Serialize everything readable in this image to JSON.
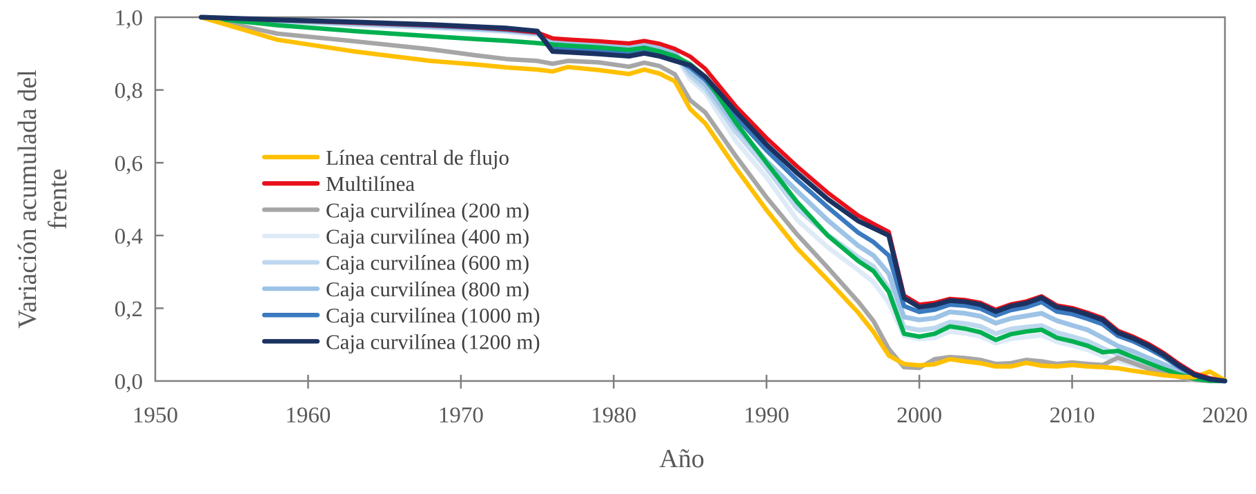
{
  "figure": {
    "background": "#ffffff",
    "frame_color": "#7f7f7f",
    "tick_text_color": "#595959",
    "legend_text_color": "#3f3f3f"
  },
  "chart_data": {
    "type": "line",
    "title": "",
    "xlabel": "Año",
    "ylabel": "Variación acumulada del frente",
    "ylabel_lines": [
      "Variación acumulada del",
      "frente"
    ],
    "xlim": [
      1950,
      2020
    ],
    "ylim": [
      0.0,
      1.0
    ],
    "grid": false,
    "legend_position": "inside-left",
    "x_ticks": [
      1950,
      1960,
      1970,
      1980,
      1990,
      2000,
      2010,
      2020
    ],
    "x_tick_labels": [
      "1950",
      "1960",
      "1970",
      "1980",
      "1990",
      "2000",
      "2010",
      "2020"
    ],
    "y_ticks": [
      0.0,
      0.2,
      0.4,
      0.6,
      0.8,
      1.0
    ],
    "y_tick_labels": [
      "0,0",
      "0,2",
      "0,4",
      "0,6",
      "0,8",
      "1,0"
    ],
    "x": [
      1953,
      1958,
      1963,
      1968,
      1971,
      1973,
      1975,
      1976,
      1977,
      1979,
      1981,
      1982,
      1983,
      1984,
      1985,
      1986,
      1988,
      1990,
      1992,
      1994,
      1996,
      1997,
      1998,
      1999,
      2000,
      2001,
      2002,
      2003,
      2004,
      2005,
      2006,
      2007,
      2008,
      2009,
      2010,
      2011,
      2012,
      2013,
      2014,
      2015,
      2016,
      2017,
      2018,
      2019,
      2020
    ],
    "series": [
      {
        "id": "caja-400",
        "name": "Caja curvilínea (400 m)",
        "color": "#DEEBF7",
        "stroke_width": 7,
        "in_legend": true,
        "legend_index": 3,
        "values": [
          1.0,
          0.989,
          0.979,
          0.971,
          0.965,
          0.96,
          0.952,
          0.928,
          0.926,
          0.921,
          0.915,
          0.922,
          0.913,
          0.895,
          0.83,
          0.792,
          0.66,
          0.56,
          0.443,
          0.368,
          0.305,
          0.272,
          0.215,
          0.124,
          0.116,
          0.119,
          0.136,
          0.131,
          0.123,
          0.104,
          0.116,
          0.121,
          0.126,
          0.108,
          0.098,
          0.086,
          0.069,
          0.056,
          0.044,
          0.032,
          0.021,
          0.011,
          0.003,
          0.0,
          0.0
        ]
      },
      {
        "id": "caja-600",
        "name": "Caja curvilínea (600 m)",
        "color": "#BDD7EE",
        "stroke_width": 7,
        "in_legend": true,
        "legend_index": 4,
        "values": [
          1.0,
          0.99,
          0.981,
          0.973,
          0.967,
          0.962,
          0.954,
          0.931,
          0.929,
          0.924,
          0.918,
          0.925,
          0.916,
          0.899,
          0.84,
          0.803,
          0.685,
          0.585,
          0.475,
          0.402,
          0.34,
          0.315,
          0.255,
          0.148,
          0.14,
          0.145,
          0.162,
          0.158,
          0.15,
          0.13,
          0.143,
          0.148,
          0.152,
          0.133,
          0.122,
          0.11,
          0.09,
          0.073,
          0.06,
          0.045,
          0.032,
          0.018,
          0.006,
          0.001,
          0.0
        ]
      },
      {
        "id": "caja-800",
        "name": "Caja curvilínea (800 m)",
        "color": "#9DC3E6",
        "stroke_width": 7,
        "in_legend": true,
        "legend_index": 5,
        "values": [
          1.0,
          0.991,
          0.983,
          0.975,
          0.969,
          0.964,
          0.956,
          0.934,
          0.932,
          0.927,
          0.921,
          0.928,
          0.919,
          0.903,
          0.85,
          0.815,
          0.7,
          0.605,
          0.522,
          0.442,
          0.372,
          0.345,
          0.295,
          0.176,
          0.168,
          0.173,
          0.19,
          0.186,
          0.178,
          0.159,
          0.172,
          0.179,
          0.186,
          0.166,
          0.153,
          0.141,
          0.119,
          0.096,
          0.081,
          0.063,
          0.046,
          0.027,
          0.01,
          0.002,
          0.0
        ]
      },
      {
        "id": "caja-1000",
        "name": "Caja curvilínea (1000 m)",
        "color": "#3A7AC0",
        "stroke_width": 6.5,
        "in_legend": true,
        "legend_index": 6,
        "values": [
          1.0,
          0.992,
          0.985,
          0.977,
          0.971,
          0.966,
          0.958,
          0.913,
          0.911,
          0.906,
          0.9,
          0.907,
          0.899,
          0.885,
          0.862,
          0.828,
          0.726,
          0.634,
          0.552,
          0.478,
          0.408,
          0.382,
          0.345,
          0.206,
          0.19,
          0.196,
          0.21,
          0.207,
          0.199,
          0.18,
          0.195,
          0.203,
          0.217,
          0.191,
          0.184,
          0.171,
          0.156,
          0.124,
          0.109,
          0.089,
          0.066,
          0.038,
          0.015,
          0.004,
          0.0
        ]
      },
      {
        "id": "caja-200",
        "name": "Caja curvilínea (200 m)",
        "color": "#A6A6A6",
        "stroke_width": 6.5,
        "in_legend": true,
        "legend_index": 2,
        "values": [
          1.0,
          0.955,
          0.934,
          0.912,
          0.895,
          0.885,
          0.88,
          0.872,
          0.88,
          0.876,
          0.864,
          0.875,
          0.866,
          0.843,
          0.772,
          0.738,
          0.618,
          0.505,
          0.403,
          0.312,
          0.218,
          0.165,
          0.088,
          0.038,
          0.036,
          0.06,
          0.066,
          0.063,
          0.058,
          0.047,
          0.049,
          0.058,
          0.054,
          0.047,
          0.051,
          0.047,
          0.044,
          0.064,
          0.049,
          0.034,
          0.021,
          0.011,
          0.003,
          0.0,
          0.0
        ]
      },
      {
        "id": "serie-verde",
        "name": "",
        "color": "#00B050",
        "stroke_width": 6.5,
        "in_legend": false,
        "legend_index": -1,
        "values": [
          1.0,
          0.978,
          0.962,
          0.948,
          0.94,
          0.935,
          0.929,
          0.925,
          0.922,
          0.917,
          0.91,
          0.916,
          0.906,
          0.893,
          0.871,
          0.836,
          0.71,
          0.6,
          0.492,
          0.4,
          0.33,
          0.302,
          0.245,
          0.13,
          0.122,
          0.13,
          0.15,
          0.144,
          0.134,
          0.113,
          0.129,
          0.136,
          0.141,
          0.119,
          0.109,
          0.097,
          0.079,
          0.083,
          0.066,
          0.049,
          0.033,
          0.018,
          0.006,
          0.001,
          0.0
        ]
      },
      {
        "id": "linea-central-de-flujo",
        "name": "Línea central de flujo",
        "color": "#FFC000",
        "stroke_width": 6.5,
        "in_legend": true,
        "legend_index": 0,
        "values": [
          1.0,
          0.938,
          0.906,
          0.88,
          0.87,
          0.862,
          0.856,
          0.851,
          0.863,
          0.855,
          0.844,
          0.856,
          0.845,
          0.824,
          0.748,
          0.708,
          0.585,
          0.47,
          0.365,
          0.278,
          0.188,
          0.135,
          0.07,
          0.047,
          0.043,
          0.046,
          0.06,
          0.054,
          0.049,
          0.04,
          0.04,
          0.05,
          0.042,
          0.04,
          0.044,
          0.04,
          0.038,
          0.035,
          0.028,
          0.022,
          0.016,
          0.012,
          0.01,
          0.026,
          0.002
        ]
      },
      {
        "id": "multilinea",
        "name": "Multilínea",
        "color": "#E8101A",
        "stroke_width": 6,
        "in_legend": true,
        "legend_index": 1,
        "values": [
          1.0,
          0.992,
          0.985,
          0.978,
          0.972,
          0.967,
          0.958,
          0.942,
          0.939,
          0.934,
          0.928,
          0.935,
          0.927,
          0.913,
          0.892,
          0.858,
          0.755,
          0.668,
          0.59,
          0.518,
          0.455,
          0.432,
          0.41,
          0.235,
          0.21,
          0.215,
          0.226,
          0.223,
          0.215,
          0.196,
          0.211,
          0.219,
          0.233,
          0.208,
          0.201,
          0.188,
          0.173,
          0.138,
          0.122,
          0.102,
          0.077,
          0.047,
          0.021,
          0.008,
          0.0
        ]
      },
      {
        "id": "caja-1200",
        "name": "Caja curvilínea (1200 m)",
        "color": "#1B3261",
        "stroke_width": 7,
        "in_legend": true,
        "legend_index": 7,
        "values": [
          1.0,
          0.993,
          0.987,
          0.98,
          0.974,
          0.97,
          0.962,
          0.906,
          0.904,
          0.899,
          0.893,
          0.901,
          0.893,
          0.88,
          0.868,
          0.836,
          0.74,
          0.65,
          0.572,
          0.5,
          0.44,
          0.42,
          0.4,
          0.228,
          0.203,
          0.209,
          0.221,
          0.218,
          0.21,
          0.191,
          0.206,
          0.214,
          0.229,
          0.203,
          0.196,
          0.183,
          0.168,
          0.133,
          0.117,
          0.097,
          0.072,
          0.042,
          0.017,
          0.005,
          0.0
        ]
      }
    ]
  }
}
